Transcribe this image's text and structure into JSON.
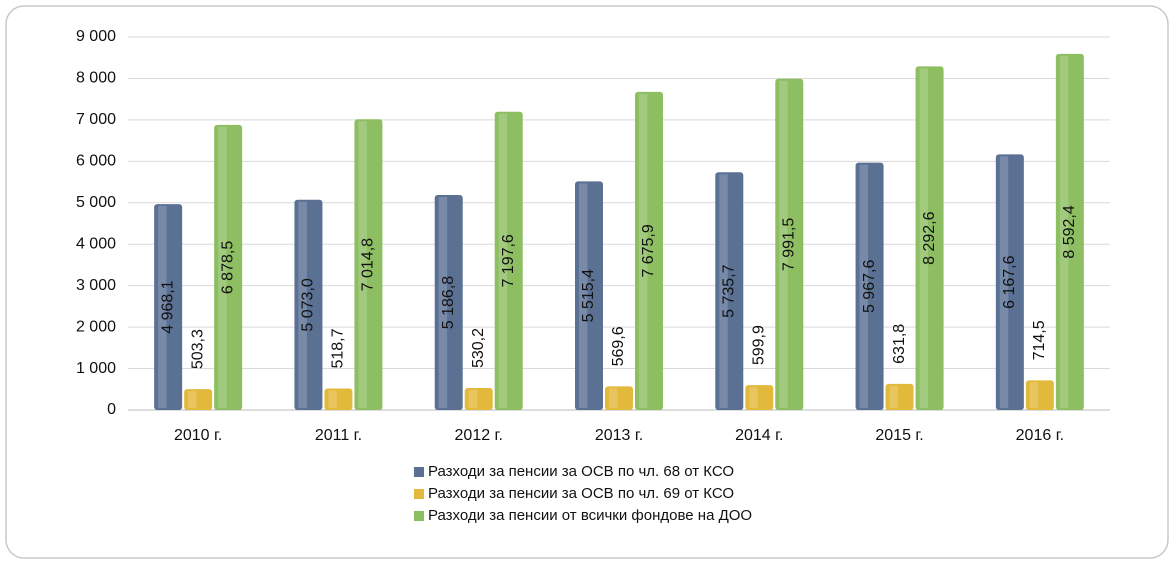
{
  "chart_data": {
    "type": "bar",
    "categories": [
      "2010 г.",
      "2011 г.",
      "2012 г.",
      "2013 г.",
      "2014 г.",
      "2015 г.",
      "2016 г."
    ],
    "series": [
      {
        "name": "Разходи за пенсии за ОСВ по чл. 68 от КСО",
        "color": "#5b7194",
        "values": [
          4968.1,
          5073.0,
          5186.8,
          5515.4,
          5735.7,
          5967.6,
          6167.6
        ],
        "value_labels": [
          "4 968,1",
          "5 073,0",
          "5 186,8",
          "5 515,4",
          "5 735,7",
          "5 967,6",
          "6 167,6"
        ]
      },
      {
        "name": "Разходи за пенсии за ОСВ по чл. 69 от КСО",
        "color": "#e3b93c",
        "values": [
          503.3,
          518.7,
          530.2,
          569.6,
          599.9,
          631.8,
          714.5
        ],
        "value_labels": [
          "503,3",
          "518,7",
          "530,2",
          "569,6",
          "599,9",
          "631,8",
          "714,5"
        ]
      },
      {
        "name": "Разходи за пенсии от всички фондове на ДОО",
        "color": "#8dbf62",
        "values": [
          6878.5,
          7014.8,
          7197.6,
          7675.9,
          7991.5,
          8292.6,
          8592.4
        ],
        "value_labels": [
          "6 878,5",
          "7 014,8",
          "7 197,6",
          "7 675,9",
          "7 991,5",
          "8 292,6",
          "8 592,4"
        ]
      }
    ],
    "ylim": [
      0,
      9000
    ],
    "yticks": [
      0,
      {
        "value": 1000,
        "label": "1 000"
      },
      {
        "value": 2000,
        "label": "2 000"
      },
      {
        "value": 3000,
        "label": "3 000"
      },
      {
        "value": 4000,
        "label": "4 000"
      },
      {
        "value": 5000,
        "label": "5 000"
      },
      {
        "value": 6000,
        "label": "6 000"
      },
      {
        "value": 7000,
        "label": "7 000"
      },
      {
        "value": 8000,
        "label": "8 000"
      },
      {
        "value": 9000,
        "label": "9 000"
      }
    ],
    "grid": true
  }
}
